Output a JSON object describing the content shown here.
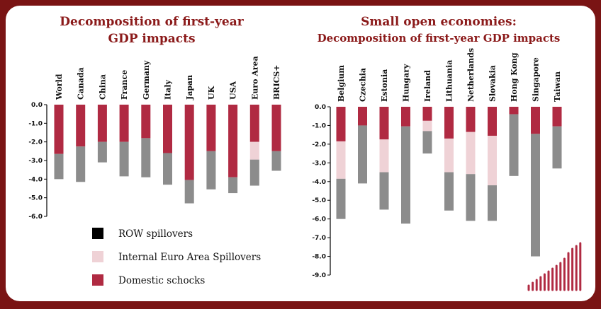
{
  "colors": {
    "row": "#8c8c8c",
    "internal": "#efd2d6",
    "domestic": "#b02a42",
    "legend_row": "#000000",
    "axis": "#000000",
    "title": "#8b1a1a",
    "frame": "#7a1414"
  },
  "legend": {
    "row": "ROW spillovers",
    "internal": "Internal Euro Area Spillovers",
    "domestic": "Domestic schocks"
  },
  "icons": {
    "logo": "bar-logo-icon"
  },
  "chart_data": [
    {
      "type": "bar",
      "stacked": true,
      "title": "Decomposition of first-year GDP impacts",
      "title_lines": [
        "Decomposition of first-year",
        "GDP impacts"
      ],
      "categories": [
        "World",
        "Canada",
        "China",
        "France",
        "Germany",
        "Italy",
        "Japan",
        "UK",
        "USA",
        "Euro Area",
        "BRICS+"
      ],
      "series": [
        {
          "key": "domestic",
          "name": "Domestic schocks",
          "values": [
            -2.65,
            -2.25,
            -2.0,
            -2.0,
            -1.8,
            -2.6,
            -4.05,
            -2.5,
            -3.9,
            -2.0,
            -2.5
          ]
        },
        {
          "key": "internal",
          "name": "Internal Euro Area Spillovers",
          "values": [
            0,
            0,
            0,
            0,
            0,
            0,
            0,
            0,
            0,
            -0.95,
            0
          ]
        },
        {
          "key": "row",
          "name": "ROW spillovers",
          "values": [
            -1.35,
            -1.9,
            -1.1,
            -1.85,
            -2.1,
            -1.7,
            -1.25,
            -2.05,
            -0.85,
            -1.4,
            -1.05
          ]
        }
      ],
      "ylim": [
        -6.0,
        0.0
      ],
      "yticks": [
        "0.0",
        "-1.0",
        "-2.0",
        "-3.0",
        "-4.0",
        "-5.0",
        "-6.0"
      ]
    },
    {
      "type": "bar",
      "stacked": true,
      "title": "Small open economies: Decomposition of first-year GDP impacts",
      "title_lines": [
        "Small open economies:",
        "Decomposition of first-year GDP impacts"
      ],
      "categories": [
        "Belgium",
        "Czechia",
        "Estonia",
        "Hungary",
        "Ireland",
        "Lithuania",
        "Netherlands",
        "Slovakia",
        "Hong Kong",
        "Singapore",
        "Taiwan"
      ],
      "series": [
        {
          "key": "domestic",
          "name": "Domestic schocks",
          "values": [
            -1.85,
            -1.0,
            -1.75,
            -1.05,
            -0.75,
            -1.7,
            -1.35,
            -1.55,
            -0.4,
            -1.45,
            -1.05
          ]
        },
        {
          "key": "internal",
          "name": "Internal Euro Area Spillovers",
          "values": [
            -2.0,
            0,
            -1.75,
            0,
            -0.55,
            -1.8,
            -2.25,
            -2.65,
            0,
            0,
            0
          ]
        },
        {
          "key": "row",
          "name": "ROW spillovers",
          "values": [
            -2.15,
            -3.1,
            -2.0,
            -5.2,
            -1.2,
            -2.05,
            -2.5,
            -1.9,
            -3.3,
            -6.55,
            -2.25
          ]
        }
      ],
      "ylim": [
        -9.0,
        0.0
      ],
      "yticks": [
        "0.0",
        "-1.0",
        "-2.0",
        "-3.0",
        "-4.0",
        "-5.0",
        "-6.0",
        "-7.0",
        "-8.0",
        "-9.0"
      ]
    }
  ]
}
